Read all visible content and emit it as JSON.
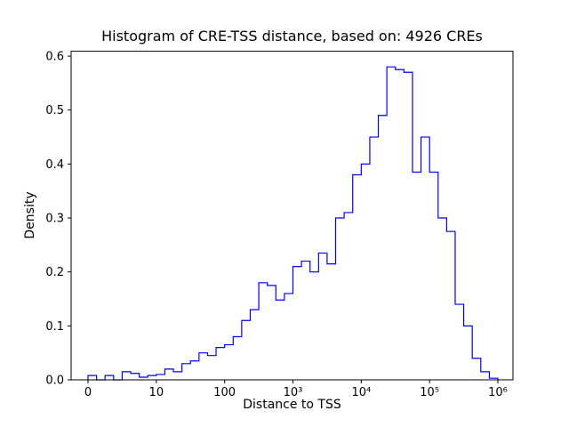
{
  "figure": {
    "background": "#ffffff",
    "axes_color": "#000000"
  },
  "chart_data": {
    "type": "histogram-step",
    "title": "Histogram of CRE-TSS distance, based on: 4926 CREs",
    "xlabel": "Distance to TSS",
    "ylabel": "Density",
    "x_scale": "symlog",
    "line_color": "#0000ff",
    "ylim": [
      0,
      0.609
    ],
    "y_ticks": [
      0.0,
      0.1,
      0.2,
      0.3,
      0.4,
      0.5,
      0.6
    ],
    "x_ticks": [
      0,
      10,
      100,
      1000,
      10000,
      100000,
      1000000
    ],
    "x_tick_labels": [
      "0",
      "10",
      "100",
      "10³",
      "10⁴",
      "10⁵",
      "10⁶"
    ],
    "bin_edges": [
      0,
      1.25,
      2.5,
      3.75,
      5,
      6.25,
      7.5,
      8.75,
      10,
      13.34,
      17.78,
      23.71,
      31.62,
      42.17,
      56.23,
      74.99,
      100,
      133.4,
      177.8,
      237.1,
      316.2,
      421.7,
      562.3,
      749.9,
      1000,
      1334,
      1778,
      2371,
      3162,
      4217,
      5623,
      7499,
      10000,
      13340,
      17780,
      23710,
      31620,
      42170,
      56230,
      74990,
      100000,
      133400,
      177800,
      237100,
      316200,
      421700,
      562300,
      749900,
      1000000
    ],
    "densities": [
      0.008,
      0.0,
      0.008,
      0.0,
      0.015,
      0.012,
      0.005,
      0.008,
      0.01,
      0.02,
      0.015,
      0.03,
      0.035,
      0.05,
      0.045,
      0.06,
      0.065,
      0.08,
      0.11,
      0.13,
      0.18,
      0.175,
      0.148,
      0.16,
      0.21,
      0.22,
      0.2,
      0.235,
      0.215,
      0.3,
      0.31,
      0.38,
      0.4,
      0.45,
      0.49,
      0.58,
      0.575,
      0.57,
      0.385,
      0.45,
      0.385,
      0.3,
      0.275,
      0.14,
      0.1,
      0.04,
      0.015,
      0.003
    ]
  }
}
